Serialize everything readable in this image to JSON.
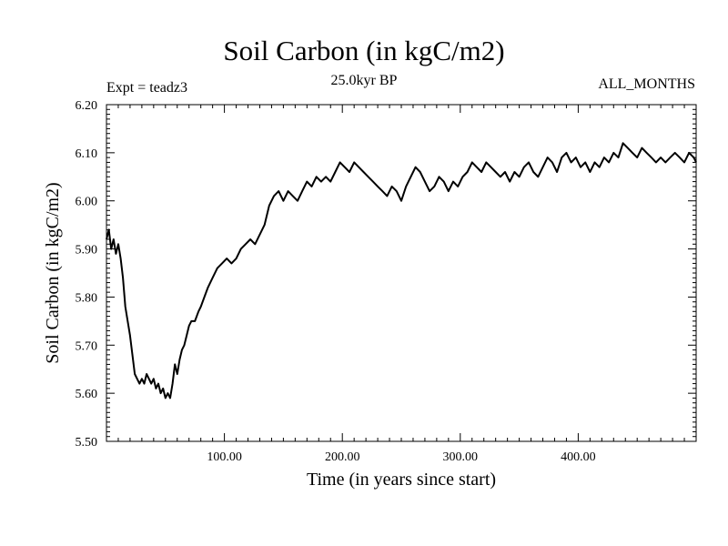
{
  "chart_data": {
    "type": "line",
    "title": "Soil Carbon (in kgC/m2)",
    "subtitle": "25.0kyr BP",
    "experiment": "Expt = teadz3",
    "period": "ALL_MONTHS",
    "xlabel": "Time (in years since start)",
    "ylabel": "Soil Carbon (in kgC/m2)",
    "xlim": [
      0,
      500
    ],
    "ylim": [
      5.5,
      6.2
    ],
    "xticks": [
      100,
      200,
      300,
      400
    ],
    "xtick_labels": [
      "100.00",
      "200.00",
      "300.00",
      "400.00"
    ],
    "yticks": [
      5.5,
      5.6,
      5.7,
      5.8,
      5.9,
      6.0,
      6.1,
      6.2
    ],
    "ytick_labels": [
      "5.50",
      "5.60",
      "5.70",
      "5.80",
      "5.90",
      "6.00",
      "6.10",
      "6.20"
    ],
    "series": [
      {
        "name": "Soil Carbon",
        "color": "#000000",
        "x": [
          0,
          2,
          4,
          6,
          8,
          10,
          12,
          14,
          16,
          18,
          20,
          22,
          24,
          26,
          28,
          30,
          32,
          34,
          36,
          38,
          40,
          42,
          44,
          46,
          48,
          50,
          52,
          54,
          56,
          58,
          60,
          62,
          64,
          66,
          68,
          70,
          72,
          75,
          78,
          80,
          83,
          86,
          90,
          94,
          98,
          102,
          106,
          110,
          114,
          118,
          122,
          126,
          130,
          134,
          138,
          142,
          146,
          150,
          154,
          158,
          162,
          166,
          170,
          174,
          178,
          182,
          186,
          190,
          194,
          198,
          202,
          206,
          210,
          214,
          218,
          222,
          226,
          230,
          234,
          238,
          242,
          246,
          250,
          254,
          258,
          262,
          266,
          270,
          274,
          278,
          282,
          286,
          290,
          294,
          298,
          302,
          306,
          310,
          314,
          318,
          322,
          326,
          330,
          334,
          338,
          342,
          346,
          350,
          354,
          358,
          362,
          366,
          370,
          374,
          378,
          382,
          386,
          390,
          394,
          398,
          402,
          406,
          410,
          414,
          418,
          422,
          426,
          430,
          434,
          438,
          442,
          446,
          450,
          454,
          458,
          462,
          466,
          470,
          474,
          478,
          482,
          486,
          490,
          494,
          498,
          500
        ],
        "values": [
          5.92,
          5.94,
          5.9,
          5.92,
          5.89,
          5.91,
          5.88,
          5.84,
          5.78,
          5.75,
          5.72,
          5.68,
          5.64,
          5.63,
          5.62,
          5.63,
          5.62,
          5.64,
          5.63,
          5.62,
          5.63,
          5.61,
          5.62,
          5.6,
          5.61,
          5.59,
          5.6,
          5.59,
          5.62,
          5.66,
          5.64,
          5.67,
          5.69,
          5.7,
          5.72,
          5.74,
          5.75,
          5.75,
          5.77,
          5.78,
          5.8,
          5.82,
          5.84,
          5.86,
          5.87,
          5.88,
          5.87,
          5.88,
          5.9,
          5.91,
          5.92,
          5.91,
          5.93,
          5.95,
          5.99,
          6.01,
          6.02,
          6.0,
          6.02,
          6.01,
          6.0,
          6.02,
          6.04,
          6.03,
          6.05,
          6.04,
          6.05,
          6.04,
          6.06,
          6.08,
          6.07,
          6.06,
          6.08,
          6.07,
          6.06,
          6.05,
          6.04,
          6.03,
          6.02,
          6.01,
          6.03,
          6.02,
          6.0,
          6.03,
          6.05,
          6.07,
          6.06,
          6.04,
          6.02,
          6.03,
          6.05,
          6.04,
          6.02,
          6.04,
          6.03,
          6.05,
          6.06,
          6.08,
          6.07,
          6.06,
          6.08,
          6.07,
          6.06,
          6.05,
          6.06,
          6.04,
          6.06,
          6.05,
          6.07,
          6.08,
          6.06,
          6.05,
          6.07,
          6.09,
          6.08,
          6.06,
          6.09,
          6.1,
          6.08,
          6.09,
          6.07,
          6.08,
          6.06,
          6.08,
          6.07,
          6.09,
          6.08,
          6.1,
          6.09,
          6.12,
          6.11,
          6.1,
          6.09,
          6.11,
          6.1,
          6.09,
          6.08,
          6.09,
          6.08,
          6.09,
          6.1,
          6.09,
          6.08,
          6.1,
          6.09,
          6.08
        ]
      }
    ]
  }
}
